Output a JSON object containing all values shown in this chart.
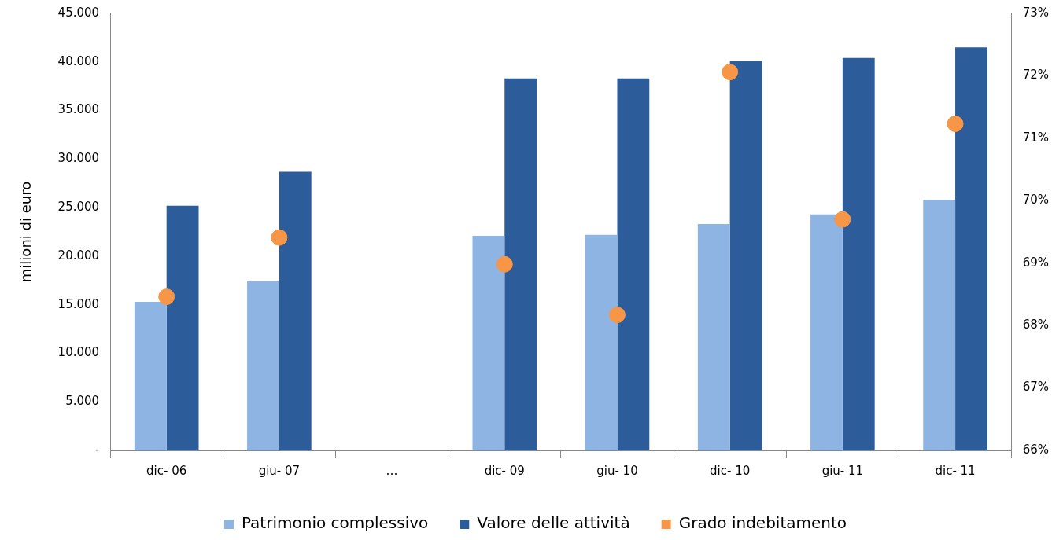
{
  "chart_data": {
    "type": "bar",
    "ylabel": "milioni di euro",
    "categories": [
      "dic- 06",
      "giu- 07",
      "…",
      "dic- 09",
      "giu- 10",
      "dic- 10",
      "giu- 11",
      "dic- 11"
    ],
    "series": [
      {
        "name": "Patrimonio complessivo",
        "color": "#8eb4e3",
        "values": [
          15300,
          17400,
          null,
          22100,
          22200,
          23300,
          24300,
          25800
        ]
      },
      {
        "name": "Valore delle attività",
        "color": "#2c5c99",
        "values": [
          25200,
          28700,
          null,
          38300,
          38300,
          40100,
          40400,
          41500
        ]
      },
      {
        "name": "Grado indebitamento",
        "type": "scatter",
        "axis": "y2",
        "color": "#f79646",
        "values": [
          68.46,
          69.41,
          null,
          68.98,
          68.17,
          72.06,
          69.7,
          71.23
        ]
      }
    ],
    "ylim": [
      0,
      45000
    ],
    "yticks": [
      {
        "value": 0,
        "label": "-"
      },
      {
        "value": 5000,
        "label": "5.000"
      },
      {
        "value": 10000,
        "label": "10.000"
      },
      {
        "value": 15000,
        "label": "15.000"
      },
      {
        "value": 20000,
        "label": "20.000"
      },
      {
        "value": 25000,
        "label": "25.000"
      },
      {
        "value": 30000,
        "label": "30.000"
      },
      {
        "value": 35000,
        "label": "35.000"
      },
      {
        "value": 40000,
        "label": "40.000"
      },
      {
        "value": 45000,
        "label": "45.000"
      }
    ],
    "y2lim": [
      66,
      73
    ],
    "y2ticks": [
      {
        "value": 66,
        "label": "66%"
      },
      {
        "value": 67,
        "label": "67%"
      },
      {
        "value": 68,
        "label": "68%"
      },
      {
        "value": 69,
        "label": "69%"
      },
      {
        "value": 70,
        "label": "70%"
      },
      {
        "value": 71,
        "label": "71%"
      },
      {
        "value": 72,
        "label": "72%"
      },
      {
        "value": 73,
        "label": "73%"
      }
    ],
    "legend": "bottom",
    "grid": false,
    "marker": "circle"
  }
}
